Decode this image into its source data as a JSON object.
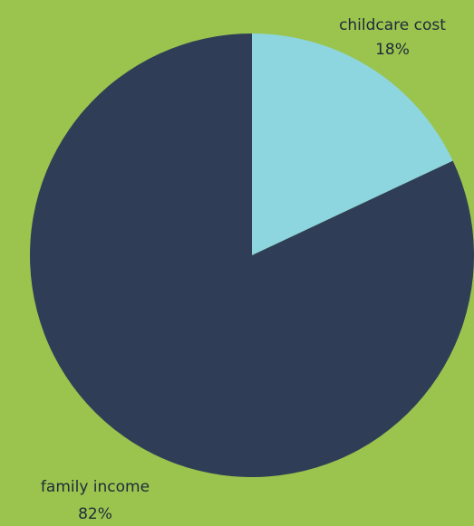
{
  "chart_data": {
    "type": "pie",
    "start_angle_deg": 0,
    "direction": "clockwise",
    "background_color": "#9AC44E",
    "slices": [
      {
        "label": "childcare cost",
        "value": 18,
        "value_label": "18%",
        "color": "#8DD6DF"
      },
      {
        "label": "family income",
        "value": 82,
        "value_label": "82%",
        "color": "#2F3E56"
      }
    ]
  }
}
